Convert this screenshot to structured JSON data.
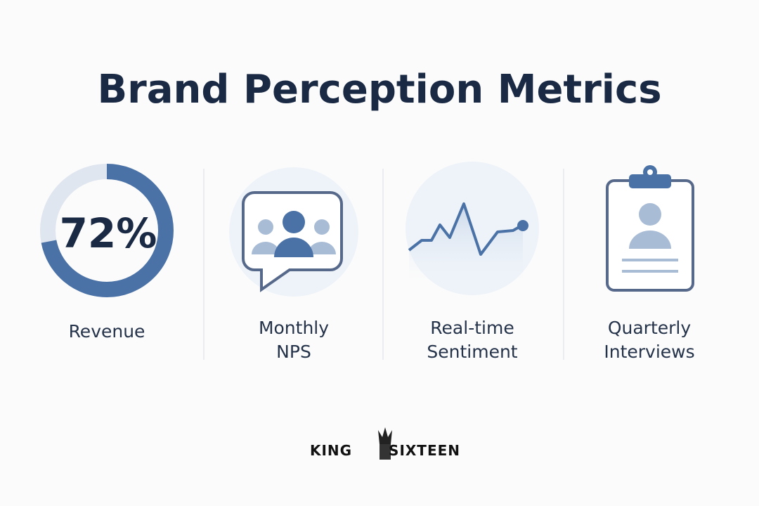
{
  "title": "Brand Perception Metrics",
  "metrics": [
    {
      "value": 72,
      "value_label": "72%",
      "label": [
        "Revenue"
      ]
    },
    {
      "label": [
        "Monthly",
        "NPS"
      ]
    },
    {
      "label": [
        "Real-time",
        "Sentiment"
      ]
    },
    {
      "label": [
        "Quarterly",
        "Interviews"
      ]
    }
  ],
  "footer": "KING SIXTEEN"
}
